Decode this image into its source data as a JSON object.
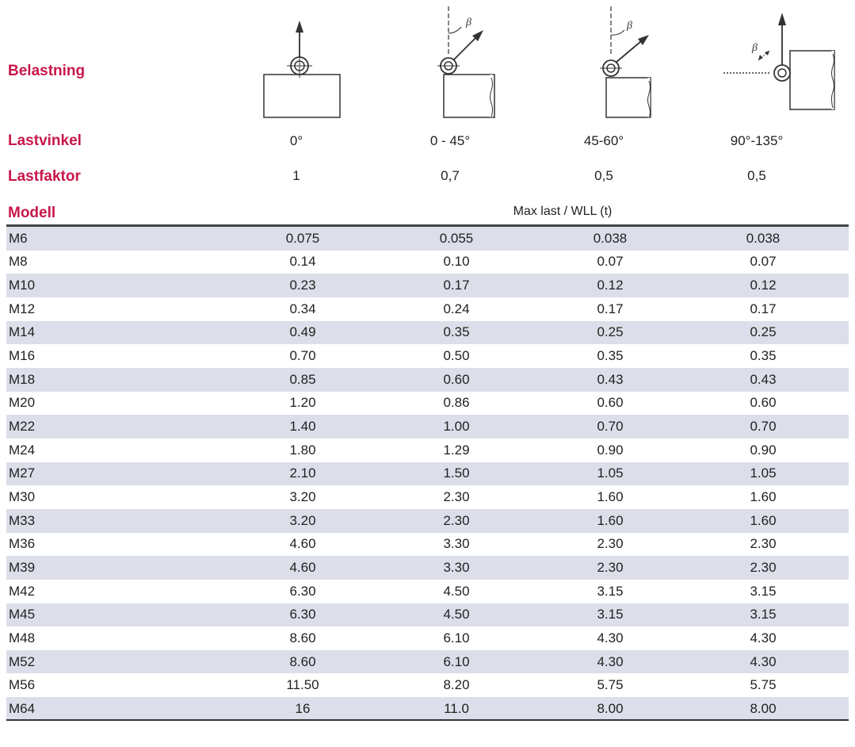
{
  "labels": {
    "belastning": "Belastning",
    "lastvinkel": "Lastvinkel",
    "lastfaktor": "Lastfaktor",
    "modell": "Modell"
  },
  "columns": [
    {
      "angle": "0°",
      "factor": "1"
    },
    {
      "angle": "0 - 45°",
      "factor": "0,7"
    },
    {
      "angle": "45-60°",
      "factor": "0,5"
    },
    {
      "angle": "90°-135°",
      "factor": "0,5"
    }
  ],
  "diagram_symbol": "β",
  "header": "Max last / WLL (t)",
  "rows": [
    {
      "model": "M6",
      "v": [
        "0.075",
        "0.055",
        "0.038",
        "0.038"
      ]
    },
    {
      "model": "M8",
      "v": [
        "0.14",
        "0.10",
        "0.07",
        "0.07"
      ]
    },
    {
      "model": "M10",
      "v": [
        "0.23",
        "0.17",
        "0.12",
        "0.12"
      ]
    },
    {
      "model": "M12",
      "v": [
        "0.34",
        "0.24",
        "0.17",
        "0.17"
      ]
    },
    {
      "model": "M14",
      "v": [
        "0.49",
        "0.35",
        "0.25",
        "0.25"
      ]
    },
    {
      "model": "M16",
      "v": [
        "0.70",
        "0.50",
        "0.35",
        "0.35"
      ]
    },
    {
      "model": "M18",
      "v": [
        "0.85",
        "0.60",
        "0.43",
        "0.43"
      ]
    },
    {
      "model": "M20",
      "v": [
        "1.20",
        "0.86",
        "0.60",
        "0.60"
      ]
    },
    {
      "model": "M22",
      "v": [
        "1.40",
        "1.00",
        "0.70",
        "0.70"
      ]
    },
    {
      "model": "M24",
      "v": [
        "1.80",
        "1.29",
        "0.90",
        "0.90"
      ]
    },
    {
      "model": "M27",
      "v": [
        "2.10",
        "1.50",
        "1.05",
        "1.05"
      ]
    },
    {
      "model": "M30",
      "v": [
        "3.20",
        "2.30",
        "1.60",
        "1.60"
      ]
    },
    {
      "model": "M33",
      "v": [
        "3.20",
        "2.30",
        "1.60",
        "1.60"
      ]
    },
    {
      "model": "M36",
      "v": [
        "4.60",
        "3.30",
        "2.30",
        "2.30"
      ]
    },
    {
      "model": "M39",
      "v": [
        "4.60",
        "3.30",
        "2.30",
        "2.30"
      ]
    },
    {
      "model": "M42",
      "v": [
        "6.30",
        "4.50",
        "3.15",
        "3.15"
      ]
    },
    {
      "model": "M45",
      "v": [
        "6.30",
        "4.50",
        "3.15",
        "3.15"
      ]
    },
    {
      "model": "M48",
      "v": [
        "8.60",
        "6.10",
        "4.30",
        "4.30"
      ]
    },
    {
      "model": "M52",
      "v": [
        "8.60",
        "6.10",
        "4.30",
        "4.30"
      ]
    },
    {
      "model": "M56",
      "v": [
        "11.50",
        "8.20",
        "5.75",
        "5.75"
      ]
    },
    {
      "model": "M64",
      "v": [
        "16",
        "11.0",
        "8.00",
        "8.00"
      ]
    }
  ]
}
